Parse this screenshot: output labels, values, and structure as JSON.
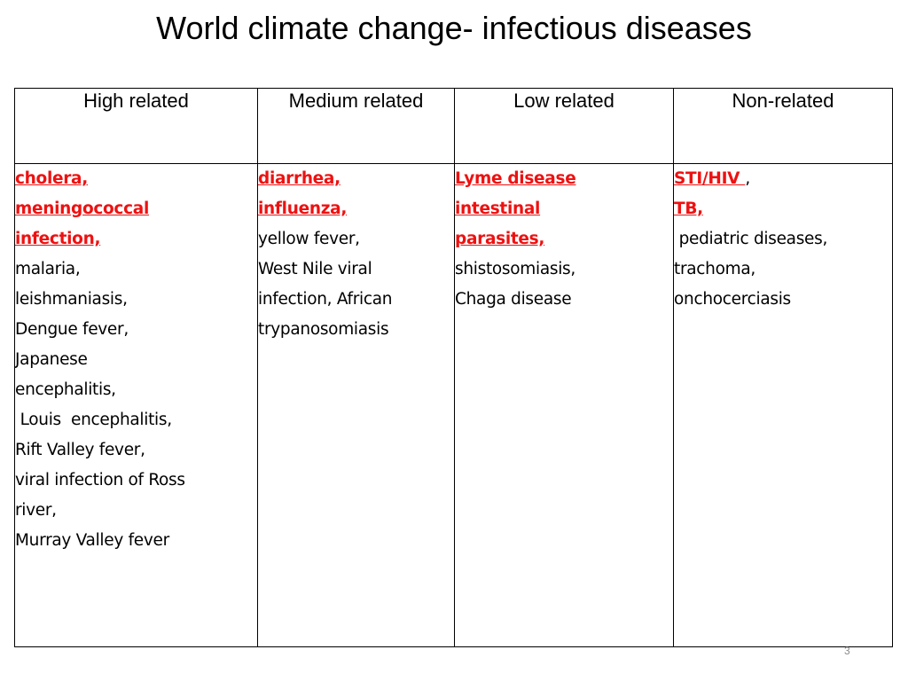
{
  "title": "World climate change- infectious diseases",
  "columns": [
    {
      "header": "High related",
      "lines": [
        {
          "text": "cholera,",
          "style": "red"
        },
        {
          "text": "meningococcal",
          "style": "red"
        },
        {
          "text": "infection,",
          "style": "red"
        },
        {
          "text": "malaria,",
          "style": "normal"
        },
        {
          "text": "leishmaniasis,",
          "style": "normal"
        },
        {
          "text": "Dengue fever,",
          "style": "normal"
        },
        {
          "text": "Japanese",
          "style": "normal"
        },
        {
          "text": "encephalitis,",
          "style": "normal"
        },
        {
          "text": " Louis  encephalitis,",
          "style": "normal"
        },
        {
          "text": "Rift Valley fever,",
          "style": "normal"
        },
        {
          "text": "viral infection of Ross",
          "style": "normal"
        },
        {
          "text": "river,",
          "style": "normal"
        },
        {
          "text": "Murray Valley fever",
          "style": "normal"
        }
      ]
    },
    {
      "header": "Medium related",
      "lines": [
        {
          "text": "diarrhea,",
          "style": "red"
        },
        {
          "text": "influenza,",
          "style": "red"
        },
        {
          "text": "yellow fever,",
          "style": "normal"
        },
        {
          "text": "West Nile viral",
          "style": "normal"
        },
        {
          "text": "infection, African",
          "style": "normal"
        },
        {
          "text": "trypanosomiasis",
          "style": "normal"
        }
      ]
    },
    {
      "header": "Low related",
      "lines": [
        {
          "text": "Lyme disease",
          "style": "red"
        },
        {
          "text": "intestinal",
          "style": "red"
        },
        {
          "text": "parasites,",
          "style": "red"
        },
        {
          "text": "shistosomiasis,",
          "style": "normal"
        },
        {
          "text": "Chaga disease",
          "style": "normal"
        }
      ]
    },
    {
      "header": "Non-related",
      "lines": [
        {
          "text": "STI/HIV ",
          "style": "red",
          "suffix": ","
        },
        {
          "text": "TB,",
          "style": "red"
        },
        {
          "text": " pediatric diseases,",
          "style": "normal"
        },
        {
          "text": "trachoma,",
          "style": "normal"
        },
        {
          "text": "onchocerciasis",
          "style": "normal"
        }
      ]
    }
  ],
  "slide_number": "3",
  "colors": {
    "highlight": "#ee1111",
    "border": "#000000"
  }
}
